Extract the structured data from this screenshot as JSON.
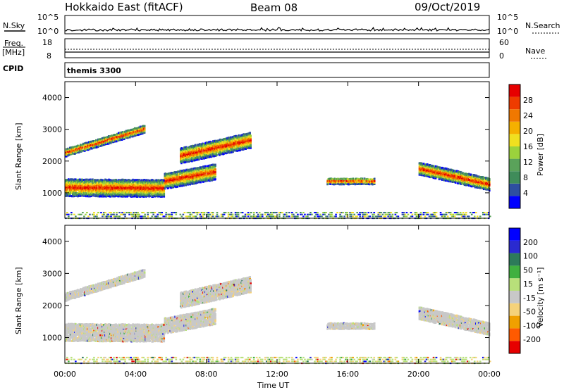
{
  "header": {
    "station": "Hokkaido East (fitACF)",
    "beam": "Beam 08",
    "date": "09/Oct/2019"
  },
  "top_panels": {
    "nsky_label": "N.Sky",
    "nsky_ticks": [
      "10^5",
      "10^0"
    ],
    "nsearch_label": "N.Search",
    "nsearch_ticks": [
      "10^5",
      "10^0"
    ],
    "freq_label": "Freq.",
    "freq_unit": "[MHz]",
    "freq_ticks": [
      "18",
      "8"
    ],
    "nave_label": "Nave",
    "nave_ticks": [
      "60",
      "0"
    ],
    "cpid_label": "CPID",
    "cpid_value": "themis 3300"
  },
  "chart_data": [
    {
      "type": "heatmap",
      "parameter": "power",
      "ylabel": "Slant Range [km]",
      "yticks": [
        "4000",
        "3000",
        "2000",
        "1000"
      ],
      "ylim": [
        200,
        4500
      ],
      "xlabel": "Time UT",
      "xticks": [
        "00:00",
        "04:00",
        "08:00",
        "12:00",
        "16:00",
        "20:00",
        "00:00"
      ],
      "xlim_hours": [
        0,
        24
      ],
      "colorbar": {
        "label": "Power [dB]",
        "ticks": [
          "28",
          "24",
          "20",
          "16",
          "12",
          "8",
          "4"
        ],
        "range": [
          0,
          30
        ],
        "colors": [
          "#0000ff",
          "#2e4fa0",
          "#3f8c5a",
          "#5aa25a",
          "#9bd23c",
          "#f0e020",
          "#f5b000",
          "#f07800",
          "#ee3c00",
          "#e60000"
        ]
      }
    },
    {
      "type": "heatmap",
      "parameter": "velocity",
      "ylabel": "Slant Range [km]",
      "yticks": [
        "4000",
        "3000",
        "2000",
        "1000"
      ],
      "ylim": [
        200,
        4500
      ],
      "xlabel": "Time UT",
      "xticks": [
        "00:00",
        "04:00",
        "08:00",
        "12:00",
        "16:00",
        "20:00",
        "00:00"
      ],
      "xlim_hours": [
        0,
        24
      ],
      "colorbar": {
        "label": "Velocity [m s⁻¹]",
        "ticks": [
          "200",
          "100",
          "50",
          "15",
          "-15",
          "-50",
          "-100",
          "-200"
        ],
        "range": [
          -250,
          250
        ],
        "colors": [
          "#e60000",
          "#ff5a00",
          "#f0a000",
          "#f5d27a",
          "#c8c8c8",
          "#b8e07a",
          "#40b040",
          "#2d7a5a",
          "#2a2ad0",
          "#0000ff"
        ]
      }
    }
  ],
  "scatter_regions": [
    {
      "name": "main-band",
      "t": [
        0.0,
        5.6
      ],
      "r_center": [
        1200,
        1180
      ],
      "r_width": 550
    },
    {
      "name": "main-band-2",
      "t": [
        5.6,
        8.5
      ],
      "r_center": [
        1400,
        1700
      ],
      "r_width": 500
    },
    {
      "name": "upper-arc",
      "t": [
        0.0,
        4.5
      ],
      "r_center": [
        2300,
        3050
      ],
      "r_width": 250
    },
    {
      "name": "upper-patch",
      "t": [
        6.5,
        10.5
      ],
      "r_center": [
        2200,
        2700
      ],
      "r_width": 500
    },
    {
      "name": "late-band",
      "t": [
        20.0,
        24.0
      ],
      "r_center": [
        1800,
        1300
      ],
      "r_width": 400
    },
    {
      "name": "mid-patch",
      "t": [
        14.8,
        17.5
      ],
      "r_center": [
        1400,
        1400
      ],
      "r_width": 200
    }
  ]
}
